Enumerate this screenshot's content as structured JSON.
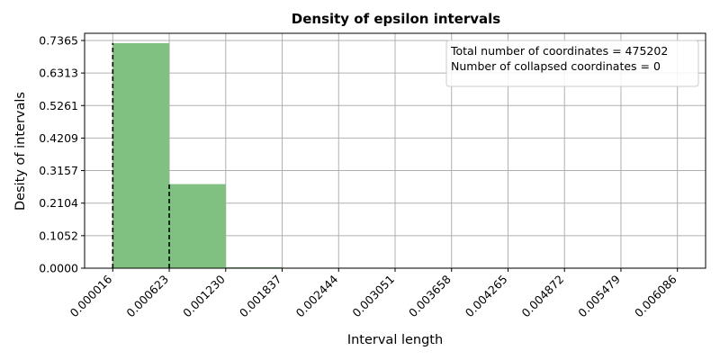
{
  "chart_data": {
    "type": "bar",
    "title": "Density of epsilon intervals",
    "xlabel": "Interval length",
    "ylabel": "Desity of intervals",
    "x_ticks": [
      "0.000016",
      "0.000623",
      "0.001230",
      "0.001837",
      "0.002444",
      "0.003051",
      "0.003658",
      "0.004265",
      "0.004872",
      "0.005479",
      "0.006086"
    ],
    "y_ticks": [
      "0.0000",
      "0.1052",
      "0.2104",
      "0.3157",
      "0.4209",
      "0.5261",
      "0.6313",
      "0.7365"
    ],
    "xlim": [
      -0.000287,
      0.006389
    ],
    "ylim": [
      0,
      0.7365
    ],
    "bins": [
      {
        "start": 1.6e-05,
        "end": 0.000623,
        "value": 0.728
      },
      {
        "start": 0.000623,
        "end": 0.00123,
        "value": 0.272
      },
      {
        "start": 0.00123,
        "end": 0.001837,
        "value": 0.003
      },
      {
        "start": 0.001837,
        "end": 0.002444,
        "value": 0.0005
      },
      {
        "start": 0.002444,
        "end": 0.003051,
        "value": 0.0002
      },
      {
        "start": 0.003051,
        "end": 0.003658,
        "value": 0.0001
      },
      {
        "start": 0.003658,
        "end": 0.004265,
        "value": 0.0001
      },
      {
        "start": 0.004265,
        "end": 0.004872,
        "value": 0.0001
      },
      {
        "start": 0.004872,
        "end": 0.005479,
        "value": 0.0001
      },
      {
        "start": 0.005479,
        "end": 0.006086,
        "value": 0.0001
      }
    ],
    "dashed_markers": [
      1.6e-05,
      0.000623
    ],
    "legend_lines": [
      "Total number of coordinates = 475202",
      "Number of collapsed coordinates = 0"
    ],
    "legend_position": "top-right",
    "grid": true,
    "colors": {
      "bar": "#80c080",
      "grid": "#b0b0b0",
      "marker": "#000000"
    }
  }
}
